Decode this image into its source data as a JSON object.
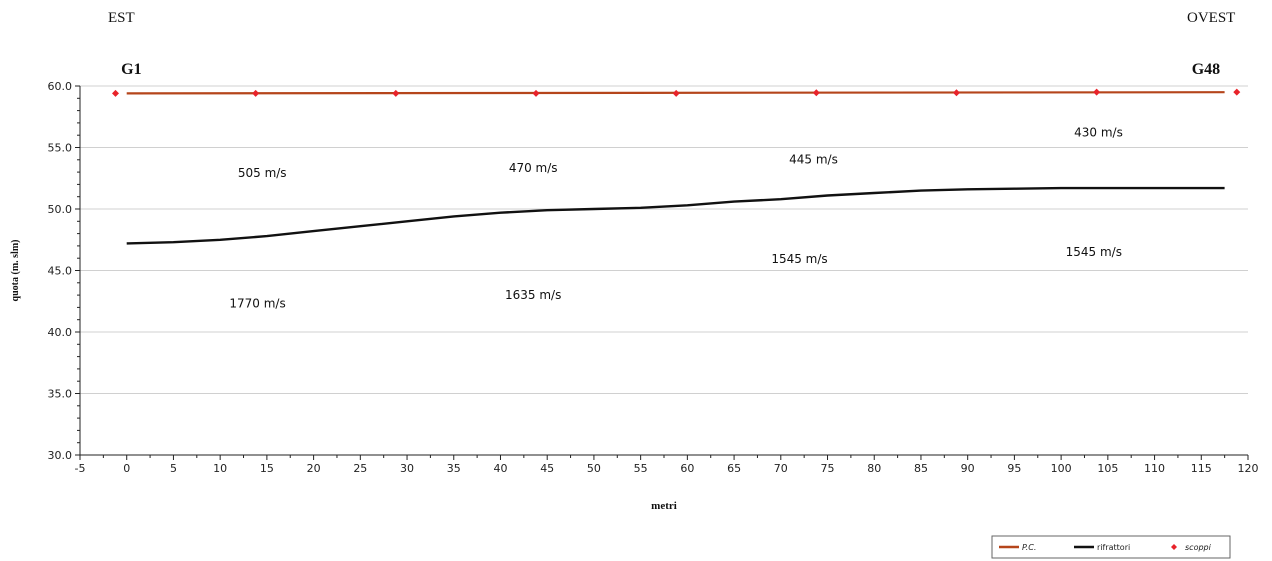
{
  "header": {
    "left_label": "EST",
    "right_label": "OVEST"
  },
  "chart_data": {
    "type": "line",
    "xlabel": "metri",
    "ylabel": "quota (m. slm)",
    "xlim": [
      -5,
      120
    ],
    "ylim": [
      30,
      60
    ],
    "xticks": [
      "-5",
      "0",
      "5",
      "10",
      "15",
      "20",
      "25",
      "30",
      "35",
      "40",
      "45",
      "50",
      "55",
      "60",
      "65",
      "70",
      "75",
      "80",
      "85",
      "90",
      "95",
      "100",
      "105",
      "110",
      "115",
      "120"
    ],
    "yticks": [
      "30.0",
      "35.0",
      "40.0",
      "45.0",
      "50.0",
      "55.0",
      "60.0"
    ],
    "grid": "horizontal",
    "legend": "bottom-right",
    "series": [
      {
        "name": "P.C.",
        "color": "#b5451b",
        "kind": "line",
        "x": [
          0,
          117.5
        ],
        "y": [
          59.4,
          59.5
        ]
      },
      {
        "name": "rifrattori",
        "color": "#111111",
        "kind": "line",
        "x": [
          0,
          5,
          10,
          15,
          20,
          25,
          30,
          35,
          40,
          45,
          50,
          55,
          60,
          65,
          70,
          75,
          80,
          85,
          90,
          95,
          100,
          105,
          110,
          117.5
        ],
        "y": [
          47.2,
          47.3,
          47.5,
          47.8,
          48.2,
          48.6,
          49.0,
          49.4,
          49.7,
          49.9,
          50.0,
          50.1,
          50.3,
          50.6,
          50.8,
          51.1,
          51.3,
          51.5,
          51.6,
          51.65,
          51.7,
          51.7,
          51.7,
          51.7
        ]
      },
      {
        "name": "scoppi",
        "color": "#e8232a",
        "kind": "marker",
        "x": [
          -1.2,
          13.8,
          28.8,
          43.8,
          58.8,
          73.8,
          88.8,
          103.8,
          118.8
        ],
        "y": [
          59.4,
          59.4,
          59.4,
          59.4,
          59.4,
          59.45,
          59.45,
          59.5,
          59.5
        ]
      }
    ],
    "annotations": [
      {
        "text": "G1",
        "x": 0.5,
        "y": 61.4,
        "style": "bold"
      },
      {
        "text": "G48",
        "x": 115.5,
        "y": 61.4,
        "style": "bold"
      },
      {
        "text": "505 m/s",
        "x": 14.5,
        "y": 53.0
      },
      {
        "text": "470 m/s",
        "x": 43.5,
        "y": 53.4
      },
      {
        "text": "445 m/s",
        "x": 73.5,
        "y": 54.1
      },
      {
        "text": "430 m/s",
        "x": 104.0,
        "y": 56.3
      },
      {
        "text": "1770 m/s",
        "x": 14.0,
        "y": 42.4
      },
      {
        "text": "1635 m/s",
        "x": 43.5,
        "y": 43.1
      },
      {
        "text": "1545 m/s",
        "x": 72.0,
        "y": 46.0
      },
      {
        "text": "1545 m/s",
        "x": 103.5,
        "y": 46.6
      }
    ]
  }
}
